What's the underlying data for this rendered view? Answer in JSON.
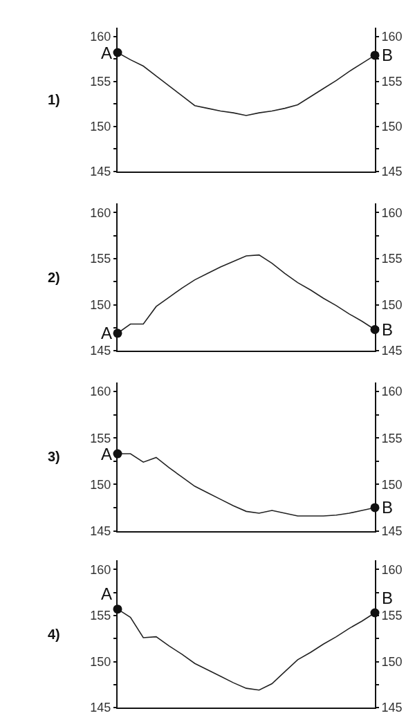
{
  "chart_data": [
    {
      "type": "line",
      "title": "1)",
      "categories": [
        null,
        null,
        null,
        null,
        null,
        null,
        null,
        null,
        null,
        null,
        null,
        null,
        null,
        null,
        null,
        null,
        null,
        null,
        null,
        null,
        null
      ],
      "series": [
        {
          "type": "line",
          "color": "#222222",
          "values": [
            158.2,
            157.4,
            156.7,
            155.6,
            154.5,
            153.4,
            152.3,
            152.0,
            151.7,
            151.5,
            151.2,
            151.5,
            151.7,
            152.0,
            152.4,
            153.3,
            154.2,
            155.1,
            156.1,
            157.0,
            157.9
          ]
        },
        {
          "type": "scatter",
          "marker": "circle",
          "color": "#111111",
          "values": [
            158.2,
            null,
            null,
            null,
            null,
            null,
            null,
            null,
            null,
            null,
            null,
            null,
            null,
            null,
            null,
            null,
            null,
            null,
            null,
            null,
            157.9
          ]
        }
      ],
      "ylim": [
        145,
        161
      ],
      "yticks": [
        145,
        {
          "value": 147.5,
          "label": null
        },
        150,
        {
          "value": 152.5,
          "label": null
        },
        155,
        {
          "value": 157.5,
          "label": null
        },
        160
      ],
      "y2lim": [
        145,
        161
      ],
      "y2ticks": [
        145,
        {
          "value": 147.5,
          "label": null
        },
        150,
        {
          "value": 152.5,
          "label": null
        },
        155,
        {
          "value": 157.5,
          "label": null
        },
        160
      ],
      "annotations": [
        "A",
        "B"
      ],
      "tick_labels": "y",
      "grid": false
    },
    {
      "type": "line",
      "title": "2)",
      "categories": [
        null,
        null,
        null,
        null,
        null,
        null,
        null,
        null,
        null,
        null,
        null,
        null,
        null,
        null,
        null,
        null,
        null,
        null,
        null,
        null,
        null
      ],
      "series": [
        {
          "type": "line",
          "color": "#222222",
          "values": [
            146.9,
            147.9,
            147.9,
            149.8,
            150.8,
            151.8,
            152.7,
            153.4,
            154.1,
            154.7,
            155.3,
            155.4,
            154.5,
            153.4,
            152.4,
            151.6,
            150.7,
            149.9,
            149.0,
            148.2,
            147.3
          ]
        },
        {
          "type": "scatter",
          "marker": "circle",
          "color": "#111111",
          "values": [
            146.9,
            null,
            null,
            null,
            null,
            null,
            null,
            null,
            null,
            null,
            null,
            null,
            null,
            null,
            null,
            null,
            null,
            null,
            null,
            null,
            147.3
          ]
        }
      ],
      "ylim": [
        145,
        161
      ],
      "yticks": [
        145,
        {
          "value": 147.5,
          "label": null
        },
        150,
        {
          "value": 152.5,
          "label": null
        },
        155,
        {
          "value": 157.5,
          "label": null
        },
        160
      ],
      "y2lim": [
        145,
        161
      ],
      "y2ticks": [
        145,
        {
          "value": 147.5,
          "label": null
        },
        150,
        {
          "value": 152.5,
          "label": null
        },
        155,
        {
          "value": 157.5,
          "label": null
        },
        160
      ],
      "annotations": [
        "A",
        "B"
      ],
      "tick_labels": "y",
      "grid": false
    },
    {
      "type": "line",
      "title": "3)",
      "categories": [
        null,
        null,
        null,
        null,
        null,
        null,
        null,
        null,
        null,
        null,
        null,
        null,
        null,
        null,
        null,
        null,
        null,
        null,
        null,
        null,
        null
      ],
      "series": [
        {
          "type": "line",
          "color": "#222222",
          "values": [
            153.3,
            153.3,
            152.4,
            152.9,
            151.8,
            150.8,
            149.8,
            149.1,
            148.4,
            147.7,
            147.1,
            146.9,
            147.2,
            146.9,
            146.6,
            146.6,
            146.6,
            146.7,
            146.9,
            147.2,
            147.5
          ]
        },
        {
          "type": "scatter",
          "marker": "circle",
          "color": "#111111",
          "values": [
            153.3,
            null,
            null,
            null,
            null,
            null,
            null,
            null,
            null,
            null,
            null,
            null,
            null,
            null,
            null,
            null,
            null,
            null,
            null,
            null,
            147.5
          ]
        }
      ],
      "ylim": [
        145,
        161
      ],
      "yticks": [
        145,
        {
          "value": 147.5,
          "label": null
        },
        150,
        {
          "value": 152.5,
          "label": null
        },
        155,
        {
          "value": 157.5,
          "label": null
        },
        160
      ],
      "y2lim": [
        145,
        161
      ],
      "y2ticks": [
        145,
        {
          "value": 147.5,
          "label": null
        },
        150,
        {
          "value": 152.5,
          "label": null
        },
        155,
        {
          "value": 157.5,
          "label": null
        },
        160
      ],
      "annotations": [
        "A",
        "B"
      ],
      "tick_labels": "y",
      "grid": false
    },
    {
      "type": "line",
      "title": "4)",
      "categories": [
        null,
        null,
        null,
        null,
        null,
        null,
        null,
        null,
        null,
        null,
        null,
        null,
        null,
        null,
        null,
        null,
        null,
        null,
        null,
        null,
        null
      ],
      "series": [
        {
          "type": "line",
          "color": "#222222",
          "values": [
            155.7,
            154.8,
            152.6,
            152.7,
            151.7,
            150.8,
            149.8,
            149.1,
            148.4,
            147.7,
            147.1,
            146.9,
            147.6,
            148.9,
            150.2,
            151.0,
            151.9,
            152.7,
            153.6,
            154.4,
            155.3
          ]
        },
        {
          "type": "scatter",
          "marker": "circle",
          "color": "#111111",
          "values": [
            155.7,
            null,
            null,
            null,
            null,
            null,
            null,
            null,
            null,
            null,
            null,
            null,
            null,
            null,
            null,
            null,
            null,
            null,
            null,
            null,
            155.3
          ]
        }
      ],
      "ylim": [
        145,
        161
      ],
      "yticks": [
        145,
        {
          "value": 147.5,
          "label": null
        },
        150,
        {
          "value": 152.5,
          "label": null
        },
        155,
        {
          "value": 157.5,
          "label": null
        },
        160
      ],
      "y2lim": [
        145,
        161
      ],
      "y2ticks": [
        145,
        {
          "value": 147.5,
          "label": null
        },
        150,
        {
          "value": 152.5,
          "label": null
        },
        155,
        {
          "value": 157.5,
          "label": null
        },
        160
      ],
      "annotations": [
        "A",
        "B"
      ],
      "tick_labels": "y",
      "grid": false
    }
  ]
}
